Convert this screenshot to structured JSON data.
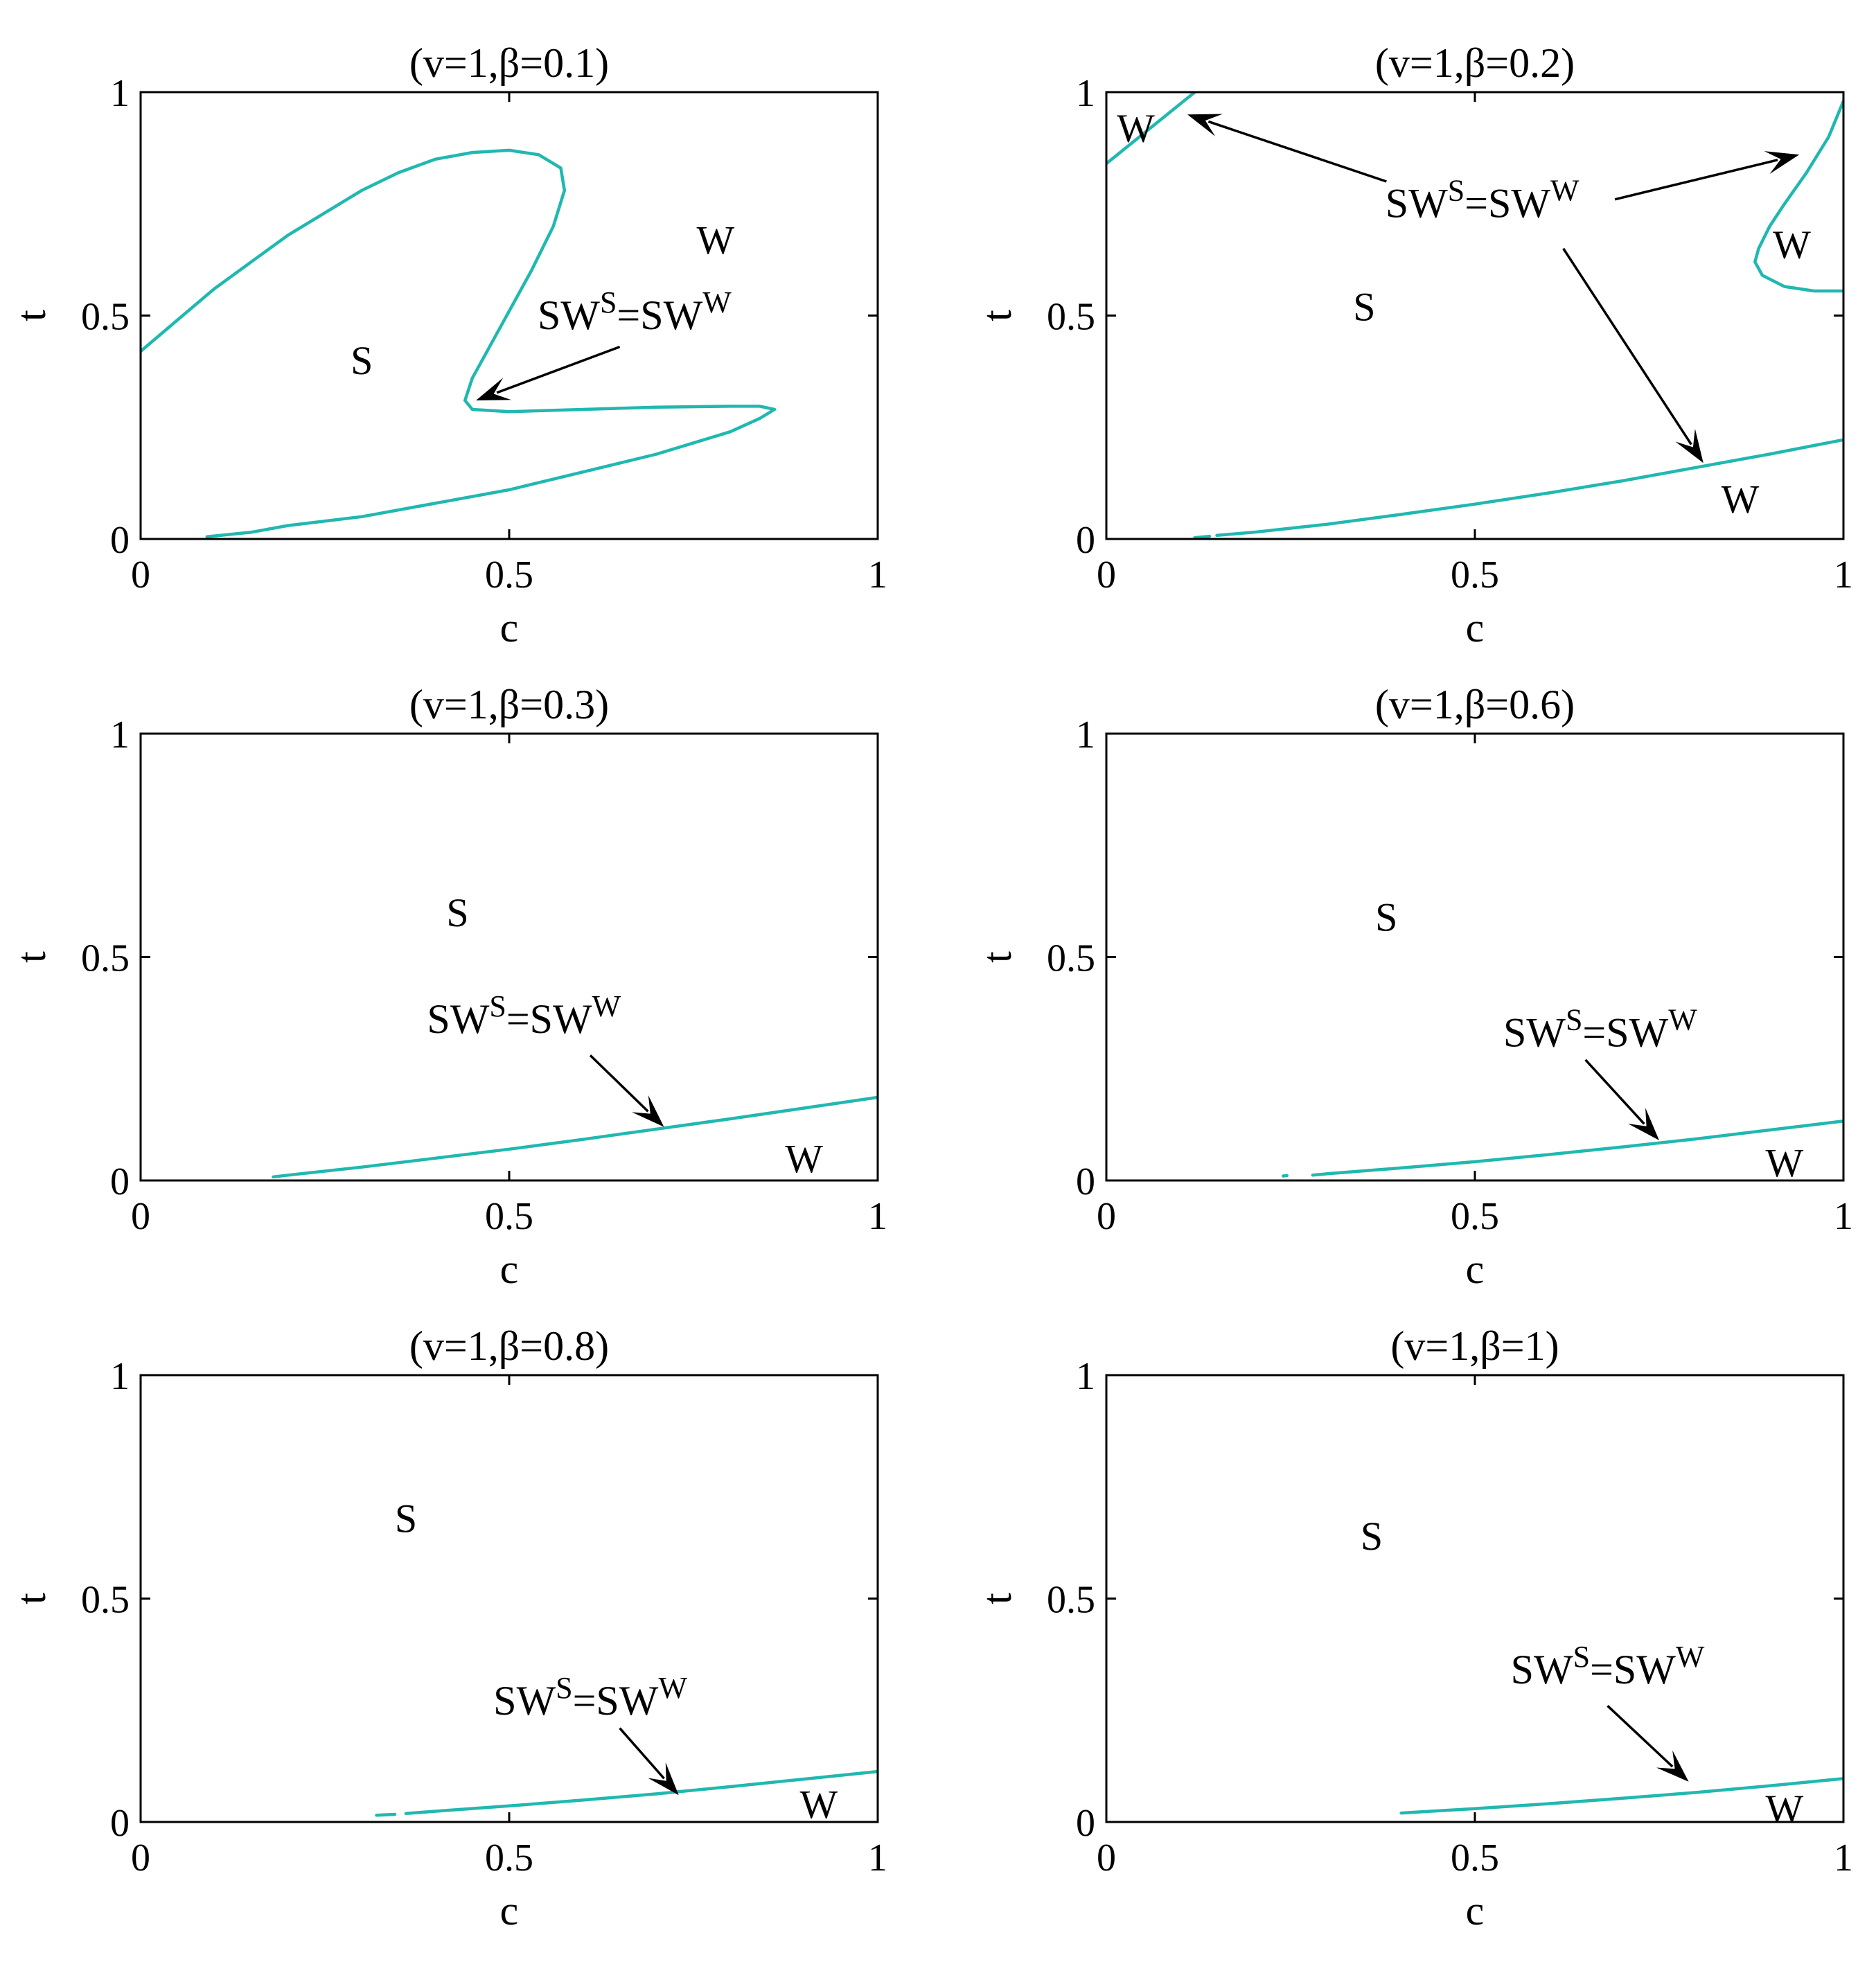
{
  "figure": {
    "curve_color": "#20B8B0",
    "axis_color": "#000000"
  },
  "chart_data": [
    {
      "type": "line",
      "title": "(v=1,β=0.1)",
      "xlabel": "c",
      "ylabel": "t",
      "xlim": [
        0,
        1
      ],
      "ylim": [
        0,
        1
      ],
      "xticks": [
        0,
        0.5,
        1
      ],
      "xtick_labels": [
        "0",
        "0.5",
        "1"
      ],
      "yticks": [
        0,
        0.5,
        1
      ],
      "ytick_labels": [
        "0",
        "0.5",
        "1"
      ],
      "grid": false,
      "series": [
        {
          "x": [
            0.0,
            0.05,
            0.1,
            0.15,
            0.2,
            0.25,
            0.3,
            0.35,
            0.4,
            0.45,
            0.5,
            0.54,
            0.57,
            0.575,
            0.56,
            0.53,
            0.5,
            0.47,
            0.45,
            0.44,
            0.45,
            0.5,
            0.6,
            0.7,
            0.8,
            0.84,
            0.86,
            0.84,
            0.8,
            0.7,
            0.6,
            0.5,
            0.4,
            0.3,
            0.2,
            0.15,
            0.09
          ],
          "y": [
            0.42,
            0.49,
            0.56,
            0.62,
            0.68,
            0.73,
            0.78,
            0.82,
            0.85,
            0.865,
            0.87,
            0.86,
            0.83,
            0.78,
            0.7,
            0.6,
            0.51,
            0.42,
            0.36,
            0.31,
            0.29,
            0.285,
            0.29,
            0.295,
            0.297,
            0.297,
            0.29,
            0.27,
            0.24,
            0.19,
            0.15,
            0.11,
            0.08,
            0.05,
            0.03,
            0.015,
            0.005
          ]
        }
      ],
      "regions": [
        {
          "label": "S",
          "x": 0.3,
          "y": 0.4
        },
        {
          "label": "W",
          "x": 0.78,
          "y": 0.67
        }
      ],
      "annotations": [
        {
          "text": {
            "base1": "SW",
            "sup1": "S",
            "mid": "=SW",
            "sup2": "W"
          },
          "tx": 0.67,
          "ty": 0.47,
          "arrows": [
            {
              "from": [
                0.65,
                0.43
              ],
              "to": [
                0.455,
                0.31
              ]
            }
          ]
        }
      ]
    },
    {
      "type": "line",
      "title": "(v=1,β=0.2)",
      "xlabel": "c",
      "ylabel": "t",
      "xlim": [
        0,
        1
      ],
      "ylim": [
        0,
        1
      ],
      "xticks": [
        0,
        0.5,
        1
      ],
      "xtick_labels": [
        "0",
        "0.5",
        "1"
      ],
      "yticks": [
        0,
        0.5,
        1
      ],
      "ytick_labels": [
        "0",
        "0.5",
        "1"
      ],
      "grid": false,
      "series": [
        {
          "x": [
            0.0,
            0.03,
            0.06,
            0.09,
            0.12
          ],
          "y": [
            0.84,
            0.88,
            0.92,
            0.96,
            1.0
          ]
        },
        {
          "x": [
            1.0,
            0.98,
            0.95,
            0.92,
            0.9,
            0.885,
            0.88,
            0.89,
            0.92,
            0.96,
            1.0
          ],
          "y": [
            0.98,
            0.9,
            0.82,
            0.75,
            0.7,
            0.65,
            0.62,
            0.59,
            0.565,
            0.555,
            0.555
          ]
        },
        {
          "x": [
            0.12,
            0.14
          ],
          "y": [
            0.003,
            0.006
          ]
        },
        {
          "x": [
            0.15,
            0.2,
            0.3,
            0.4,
            0.5,
            0.6,
            0.7,
            0.8,
            0.9,
            1.0
          ],
          "y": [
            0.008,
            0.015,
            0.033,
            0.055,
            0.078,
            0.103,
            0.13,
            0.16,
            0.19,
            0.222
          ]
        }
      ],
      "regions": [
        {
          "label": "W",
          "x": 0.04,
          "y": 0.92
        },
        {
          "label": "W",
          "x": 0.93,
          "y": 0.66
        },
        {
          "label": "S",
          "x": 0.35,
          "y": 0.52
        },
        {
          "label": "W",
          "x": 0.86,
          "y": 0.09
        }
      ],
      "annotations": [
        {
          "text": {
            "base1": "SW",
            "sup1": "S",
            "mid": "=SW",
            "sup2": "W"
          },
          "tx": 0.51,
          "ty": 0.72,
          "arrows": [
            {
              "from": [
                0.38,
                0.8
              ],
              "to": [
                0.11,
                0.95
              ]
            },
            {
              "from": [
                0.69,
                0.76
              ],
              "to": [
                0.94,
                0.86
              ]
            },
            {
              "from": [
                0.62,
                0.65
              ],
              "to": [
                0.81,
                0.17
              ]
            }
          ]
        }
      ]
    },
    {
      "type": "line",
      "title": "(v=1,β=0.3)",
      "xlabel": "c",
      "ylabel": "t",
      "xlim": [
        0,
        1
      ],
      "ylim": [
        0,
        1
      ],
      "xticks": [
        0,
        0.5,
        1
      ],
      "xtick_labels": [
        "0",
        "0.5",
        "1"
      ],
      "yticks": [
        0,
        0.5,
        1
      ],
      "ytick_labels": [
        "0",
        "0.5",
        "1"
      ],
      "grid": false,
      "series": [
        {
          "x": [
            0.18,
            0.2,
            0.3,
            0.4,
            0.5,
            0.6,
            0.7,
            0.8,
            0.9,
            1.0
          ],
          "y": [
            0.008,
            0.012,
            0.03,
            0.05,
            0.07,
            0.092,
            0.115,
            0.138,
            0.162,
            0.186
          ]
        }
      ],
      "regions": [
        {
          "label": "S",
          "x": 0.43,
          "y": 0.6
        },
        {
          "label": "W",
          "x": 0.9,
          "y": 0.05
        }
      ],
      "annotations": [
        {
          "text": {
            "base1": "SW",
            "sup1": "S",
            "mid": "=SW",
            "sup2": "W"
          },
          "tx": 0.52,
          "ty": 0.33,
          "arrows": [
            {
              "from": [
                0.61,
                0.28
              ],
              "to": [
                0.71,
                0.12
              ]
            }
          ]
        }
      ]
    },
    {
      "type": "line",
      "title": "(v=1,β=0.6)",
      "xlabel": "c",
      "ylabel": "t",
      "xlim": [
        0,
        1
      ],
      "ylim": [
        0,
        1
      ],
      "xticks": [
        0,
        0.5,
        1
      ],
      "xtick_labels": [
        "0",
        "0.5",
        "1"
      ],
      "yticks": [
        0,
        0.5,
        1
      ],
      "ytick_labels": [
        "0",
        "0.5",
        "1"
      ],
      "grid": false,
      "series": [
        {
          "x": [
            0.24,
            0.245
          ],
          "y": [
            0.01,
            0.011
          ]
        },
        {
          "x": [
            0.28,
            0.3,
            0.4,
            0.5,
            0.6,
            0.7,
            0.8,
            0.9,
            1.0
          ],
          "y": [
            0.012,
            0.015,
            0.028,
            0.042,
            0.058,
            0.075,
            0.093,
            0.113,
            0.133
          ]
        }
      ],
      "regions": [
        {
          "label": "S",
          "x": 0.38,
          "y": 0.59
        },
        {
          "label": "W",
          "x": 0.92,
          "y": 0.04
        }
      ],
      "annotations": [
        {
          "text": {
            "base1": "SW",
            "sup1": "S",
            "mid": "=SW",
            "sup2": "W"
          },
          "tx": 0.67,
          "ty": 0.3,
          "arrows": [
            {
              "from": [
                0.65,
                0.27
              ],
              "to": [
                0.75,
                0.09
              ]
            }
          ]
        }
      ]
    },
    {
      "type": "line",
      "title": "(v=1,β=0.8)",
      "xlabel": "c",
      "ylabel": "t",
      "xlim": [
        0,
        1
      ],
      "ylim": [
        0,
        1
      ],
      "xticks": [
        0,
        0.5,
        1
      ],
      "xtick_labels": [
        "0",
        "0.5",
        "1"
      ],
      "yticks": [
        0,
        0.5,
        1
      ],
      "ytick_labels": [
        "0",
        "0.5",
        "1"
      ],
      "grid": false,
      "series": [
        {
          "x": [
            0.32,
            0.345
          ],
          "y": [
            0.015,
            0.017
          ]
        },
        {
          "x": [
            0.36,
            0.4,
            0.5,
            0.6,
            0.7,
            0.8,
            0.9,
            1.0
          ],
          "y": [
            0.019,
            0.024,
            0.036,
            0.049,
            0.063,
            0.079,
            0.096,
            0.113
          ]
        }
      ],
      "regions": [
        {
          "label": "S",
          "x": 0.36,
          "y": 0.68
        },
        {
          "label": "W",
          "x": 0.92,
          "y": 0.04
        }
      ],
      "annotations": [
        {
          "text": {
            "base1": "SW",
            "sup1": "S",
            "mid": "=SW",
            "sup2": "W"
          },
          "tx": 0.61,
          "ty": 0.24,
          "arrows": [
            {
              "from": [
                0.65,
                0.21
              ],
              "to": [
                0.73,
                0.06
              ]
            }
          ]
        }
      ]
    },
    {
      "type": "line",
      "title": "(v=1,β=1)",
      "xlabel": "c",
      "ylabel": "t",
      "xlim": [
        0,
        1
      ],
      "ylim": [
        0,
        1
      ],
      "xticks": [
        0,
        0.5,
        1
      ],
      "xtick_labels": [
        "0",
        "0.5",
        "1"
      ],
      "yticks": [
        0,
        0.5,
        1
      ],
      "ytick_labels": [
        "0",
        "0.5",
        "1"
      ],
      "grid": false,
      "series": [
        {
          "x": [
            0.4,
            0.5,
            0.6,
            0.7,
            0.8,
            0.9,
            1.0
          ],
          "y": [
            0.02,
            0.03,
            0.041,
            0.053,
            0.066,
            0.081,
            0.097
          ]
        }
      ],
      "regions": [
        {
          "label": "S",
          "x": 0.36,
          "y": 0.64
        },
        {
          "label": "W",
          "x": 0.92,
          "y": 0.03
        }
      ],
      "annotations": [
        {
          "text": {
            "base1": "SW",
            "sup1": "S",
            "mid": "=SW",
            "sup2": "W"
          },
          "tx": 0.68,
          "ty": 0.31,
          "arrows": [
            {
              "from": [
                0.68,
                0.26
              ],
              "to": [
                0.79,
                0.09
              ]
            }
          ]
        }
      ]
    }
  ]
}
